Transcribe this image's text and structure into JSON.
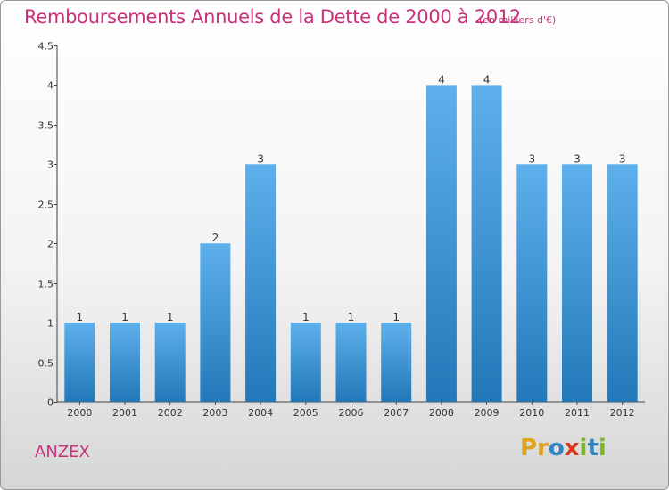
{
  "header": {
    "title": "Remboursements Annuels de la Dette de 2000 à 2012",
    "unit": "(en milliers d'€)"
  },
  "footer": {
    "commune": "ANZEX",
    "brand": "Proxiti"
  },
  "colors": {
    "accent": "#c8327a",
    "bar_top": "#5eb0ec",
    "bar_bottom": "#2278b8"
  },
  "chart_data": {
    "type": "bar",
    "title": "Remboursements Annuels de la Dette de 2000 à 2012",
    "categories": [
      "2000",
      "2001",
      "2002",
      "2003",
      "2004",
      "2005",
      "2006",
      "2007",
      "2008",
      "2009",
      "2010",
      "2011",
      "2012"
    ],
    "values": [
      1,
      1,
      1,
      2,
      3,
      1,
      1,
      1,
      4,
      4,
      3,
      3,
      3
    ],
    "ylim": [
      0,
      4.5
    ],
    "yticks": [
      "0",
      "0.5",
      "1",
      "1.5",
      "2",
      "2.5",
      "3",
      "3.5",
      "4",
      "4.5"
    ],
    "grid": false,
    "xlabel": "",
    "ylabel": ""
  }
}
